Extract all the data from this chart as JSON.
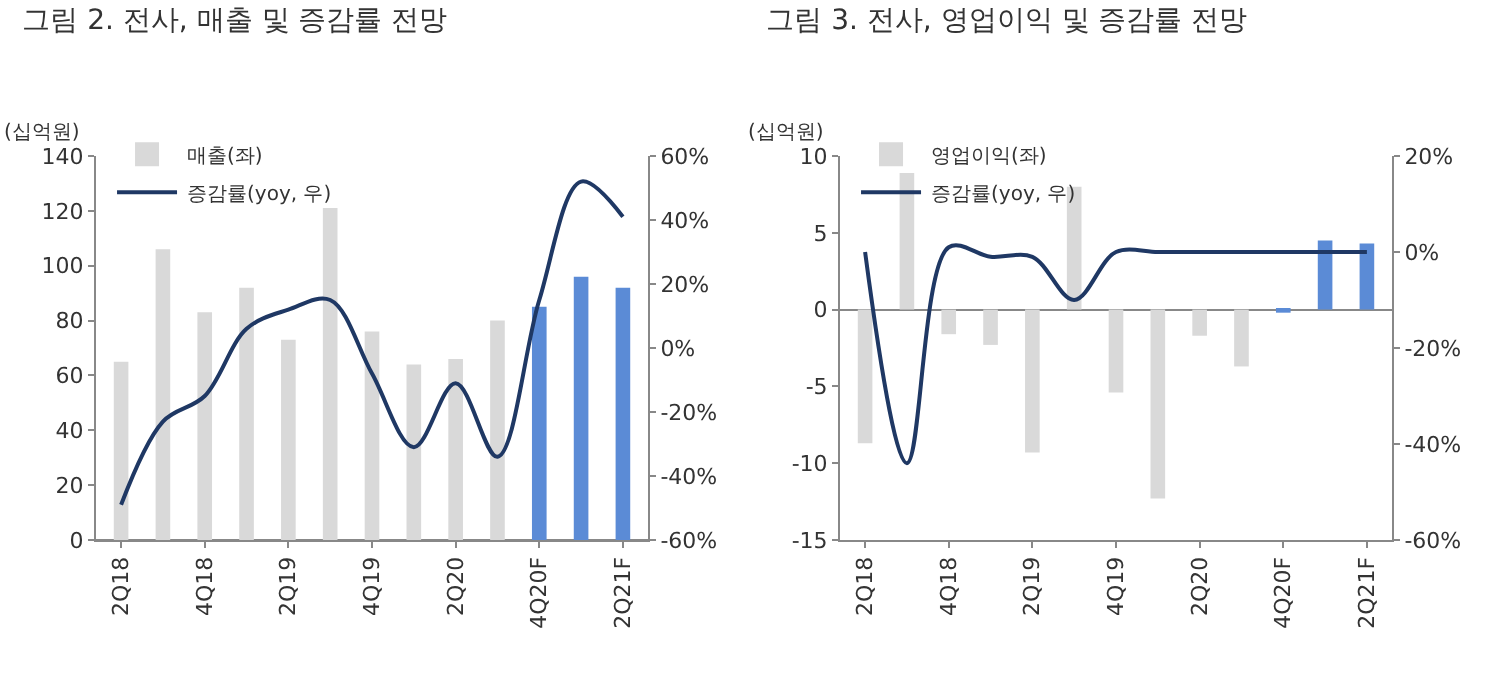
{
  "chart_data": [
    {
      "type": "bar",
      "title": "그림 2. 전사, 매출 및 증감률 전망",
      "ylabel": "(십억원)",
      "categories": [
        "2Q18",
        null,
        "4Q18",
        null,
        "2Q19",
        null,
        "4Q19",
        null,
        "2Q20",
        null,
        "4Q20F",
        null,
        "2Q21F"
      ],
      "series": [
        {
          "name": "매출(좌)",
          "colors": [
            "#d9d9d9",
            "#d9d9d9",
            "#d9d9d9",
            "#d9d9d9",
            "#d9d9d9",
            "#d9d9d9",
            "#d9d9d9",
            "#d9d9d9",
            "#d9d9d9",
            "#d9d9d9",
            "#5b8bd6",
            "#5b8bd6",
            "#5b8bd6"
          ],
          "values": [
            65,
            106,
            83,
            92,
            73,
            121,
            76,
            64,
            66,
            80,
            85,
            96,
            92
          ]
        },
        {
          "name": "증감률(yoy, 우)",
          "type": "line",
          "axis": "y2",
          "color": "#1f3864",
          "values": [
            -49,
            -23,
            -15,
            6,
            12,
            15,
            -8,
            -31,
            -11,
            -34,
            15,
            52,
            41
          ]
        }
      ],
      "ylim": [
        0,
        140
      ],
      "yticks": [
        0,
        20,
        40,
        60,
        80,
        100,
        120,
        140
      ],
      "y2lim": [
        -60,
        60
      ],
      "y2ticks": [
        {
          "value": -60,
          "label": "-60%"
        },
        {
          "value": -40,
          "label": "-40%"
        },
        {
          "value": -20,
          "label": "-20%"
        },
        {
          "value": 0,
          "label": "0%"
        },
        {
          "value": 20,
          "label": "20%"
        },
        {
          "value": 40,
          "label": "40%"
        },
        {
          "value": 60,
          "label": "60%"
        }
      ],
      "legend": "top left",
      "marker": "none"
    },
    {
      "type": "bar",
      "title": "그림 3. 전사, 영업이익 및 증감률 전망",
      "ylabel": "(십억원)",
      "categories": [
        "2Q18",
        null,
        "4Q18",
        null,
        "2Q19",
        null,
        "4Q19",
        null,
        "2Q20",
        null,
        "4Q20F",
        null,
        "2Q21F"
      ],
      "series": [
        {
          "name": "영업이익(좌)",
          "colors": [
            "#d9d9d9",
            "#d9d9d9",
            "#d9d9d9",
            "#d9d9d9",
            "#d9d9d9",
            "#d9d9d9",
            "#d9d9d9",
            "#d9d9d9",
            "#d9d9d9",
            "#d9d9d9",
            "#5b8bd6",
            "#5b8bd6",
            "#5b8bd6"
          ],
          "values": [
            -8.7,
            8.9,
            -1.6,
            -2.3,
            -9.3,
            8,
            -5.4,
            -12.3,
            -1.7,
            -3.7,
            -0.2,
            4.5,
            4.3
          ]
        },
        {
          "name": "증감률(yoy, 우)",
          "type": "line",
          "axis": "y2",
          "color": "#1f3864",
          "values": [
            0,
            -44,
            1,
            -1,
            -1,
            -10,
            0,
            0,
            0,
            0,
            0,
            0,
            0
          ]
        }
      ],
      "ylim": [
        -15,
        10
      ],
      "yticks": [
        -15,
        -10,
        -5,
        0,
        5,
        10
      ],
      "y2lim": [
        -60,
        20
      ],
      "y2ticks": [
        {
          "value": -60,
          "label": "-60%"
        },
        {
          "value": -40,
          "label": "-40%"
        },
        {
          "value": -20,
          "label": "-20%"
        },
        {
          "value": 0,
          "label": "0%"
        },
        {
          "value": 20,
          "label": "20%"
        }
      ],
      "legend": "top left",
      "marker": "none"
    }
  ]
}
